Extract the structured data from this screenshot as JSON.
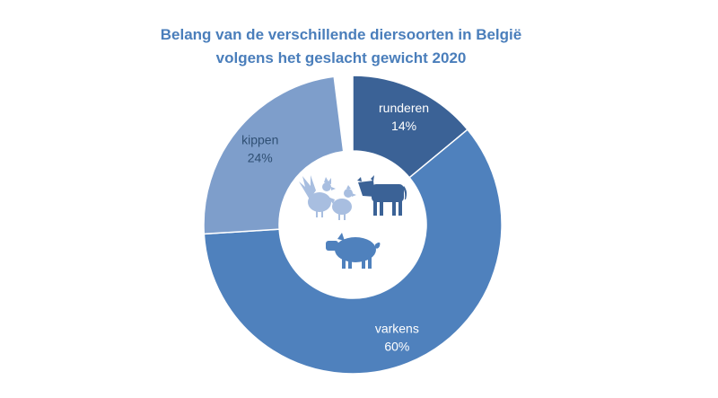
{
  "title_line1": "Belang van de verschillende diersoorten in België",
  "title_line2": "volgens het geslacht gewicht 2020",
  "chart_data": {
    "type": "pie",
    "variant": "donut",
    "title": "Belang van de verschillende diersoorten in België volgens het geslacht gewicht 2020",
    "categories": [
      "runderen",
      "varkens",
      "kippen"
    ],
    "values": [
      14,
      60,
      24
    ],
    "value_labels": [
      "14%",
      "60%",
      "24%"
    ],
    "colors": [
      "#3b6296",
      "#4f81bd",
      "#7e9ecb"
    ],
    "label_colors": [
      "#ffffff",
      "#ffffff",
      "#2f4f73"
    ],
    "center_icons": [
      "rooster-icon",
      "hen-icon",
      "cow-icon",
      "pig-icon"
    ],
    "icon_colors": {
      "poultry": "#a8bee0",
      "cow": "#3b6296",
      "pig": "#4f81bd"
    }
  }
}
